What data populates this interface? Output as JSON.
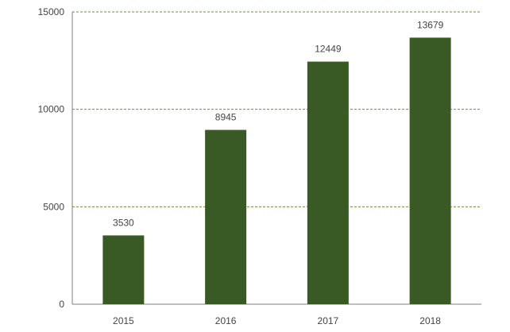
{
  "chart_data": {
    "type": "bar",
    "categories": [
      "2015",
      "2016",
      "2017",
      "2018"
    ],
    "values": [
      3530,
      8945,
      12449,
      13679
    ],
    "title": "",
    "xlabel": "",
    "ylabel": "",
    "ylim": [
      0,
      15000
    ],
    "yticks": [
      0,
      5000,
      10000,
      15000
    ],
    "grid": true,
    "grid_style": "dashed",
    "data_labels": true,
    "legend": "none",
    "colors": {
      "bar": "#3a5a25",
      "grid": "#6a8f3a",
      "axis": "#7f7f7f",
      "text": "#444444"
    }
  }
}
